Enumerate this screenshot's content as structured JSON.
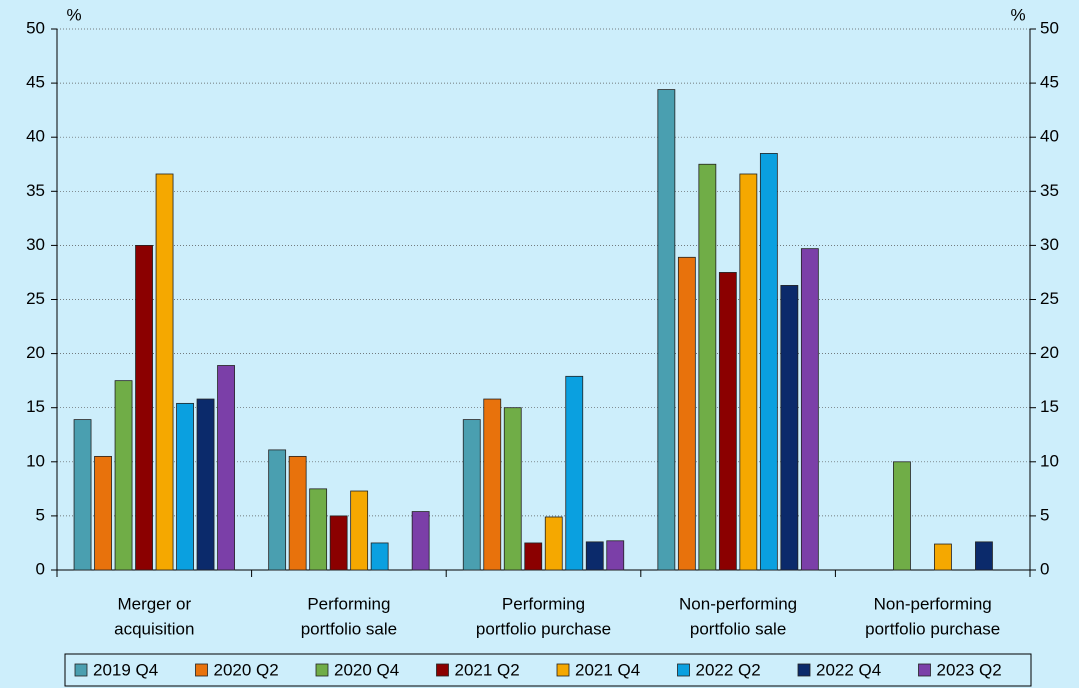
{
  "chart_data": {
    "type": "bar",
    "categories": [
      [
        "Merger or",
        "acquisition"
      ],
      [
        "Performing",
        "portfolio sale"
      ],
      [
        "Performing",
        "portfolio purchase"
      ],
      [
        "Non-performing",
        "portfolio sale"
      ],
      [
        "Non-performing",
        "portfolio purchase"
      ]
    ],
    "series": [
      {
        "name": "2019 Q4",
        "color": "#4a9fb0",
        "values": [
          13.9,
          11.1,
          13.9,
          44.4,
          0
        ]
      },
      {
        "name": "2020 Q2",
        "color": "#e8720c",
        "values": [
          10.5,
          10.5,
          15.8,
          28.9,
          0
        ]
      },
      {
        "name": "2020 Q4",
        "color": "#70ad47",
        "values": [
          17.5,
          7.5,
          15.0,
          37.5,
          10.0
        ]
      },
      {
        "name": "2021 Q2",
        "color": "#8b0000",
        "values": [
          30.0,
          5.0,
          2.5,
          27.5,
          0
        ]
      },
      {
        "name": "2021 Q4",
        "color": "#f5a800",
        "values": [
          36.6,
          7.3,
          4.9,
          36.6,
          2.4
        ]
      },
      {
        "name": "2022 Q2",
        "color": "#0aa0e0",
        "values": [
          15.4,
          2.5,
          17.9,
          38.5,
          0
        ]
      },
      {
        "name": "2022 Q4",
        "color": "#0b2a6b",
        "values": [
          15.8,
          0,
          2.6,
          26.3,
          2.6
        ]
      },
      {
        "name": "2023 Q2",
        "color": "#7b3fa8",
        "values": [
          18.9,
          5.4,
          2.7,
          29.7,
          0
        ]
      }
    ],
    "ylabel": "%",
    "y2label": "%",
    "ylim": [
      0,
      50
    ],
    "yticks": [
      0,
      5,
      10,
      15,
      20,
      25,
      30,
      35,
      40,
      45,
      50
    ],
    "y2lim": [
      0,
      50
    ],
    "y2ticks": [
      0,
      5,
      10,
      15,
      20,
      25,
      30,
      35,
      40,
      45,
      50
    ],
    "grid": true
  }
}
